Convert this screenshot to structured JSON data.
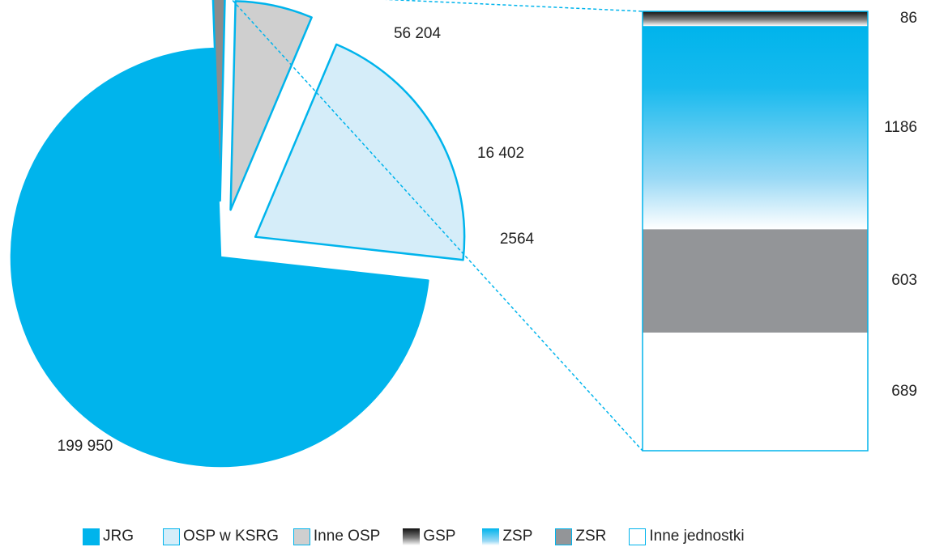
{
  "chart_data": [
    {
      "type": "pie",
      "slices": [
        {
          "label": "JRG",
          "value": 199950,
          "value_label": "199 950",
          "color": "#00b4ec",
          "exploded": false
        },
        {
          "label": "OSP w KSRG",
          "value": 56204,
          "value_label": "56 204",
          "color": "#d5edf9",
          "exploded": true
        },
        {
          "label": "Inne OSP",
          "value": 16402,
          "value_label": "16 402",
          "color": "#cfcfcf",
          "exploded": true
        },
        {
          "label": "Inne",
          "value": 2564,
          "value_label": "2564",
          "color": "#8c8c8c",
          "exploded": true
        }
      ],
      "outline_color": "#00b4ec"
    },
    {
      "type": "bar",
      "stacked": true,
      "breakdown_of": "2564",
      "segments": [
        {
          "label": "GSP",
          "value": 86,
          "value_label": "86",
          "fill": "gradient-dark"
        },
        {
          "label": "ZSP",
          "value": 1186,
          "value_label": "1186",
          "fill": "gradient-blue"
        },
        {
          "label": "ZSR",
          "value": 603,
          "value_label": "603",
          "color": "#939598"
        },
        {
          "label": "Inne jednostki",
          "value": 689,
          "value_label": "689",
          "color": "#ffffff"
        }
      ],
      "outline_color": "#00b4ec",
      "connector": "dashed"
    }
  ],
  "legend": [
    {
      "label": "JRG",
      "swatch": "jrg"
    },
    {
      "label": "OSP w KSRG",
      "swatch": "osp"
    },
    {
      "label": "Inne OSP",
      "swatch": "inneosp"
    },
    {
      "label": "GSP",
      "swatch": "gsp"
    },
    {
      "label": "ZSP",
      "swatch": "zsp"
    },
    {
      "label": "ZSR",
      "swatch": "zsr"
    },
    {
      "label": "Inne jednostki",
      "swatch": "innej"
    }
  ],
  "colors": {
    "accent": "#00b4ec",
    "osp_fill": "#d5edf9",
    "inne_osp_fill": "#cfcfcf",
    "inne_fill": "#8c8c8c",
    "zsr_fill": "#939598",
    "text": "#222222"
  }
}
